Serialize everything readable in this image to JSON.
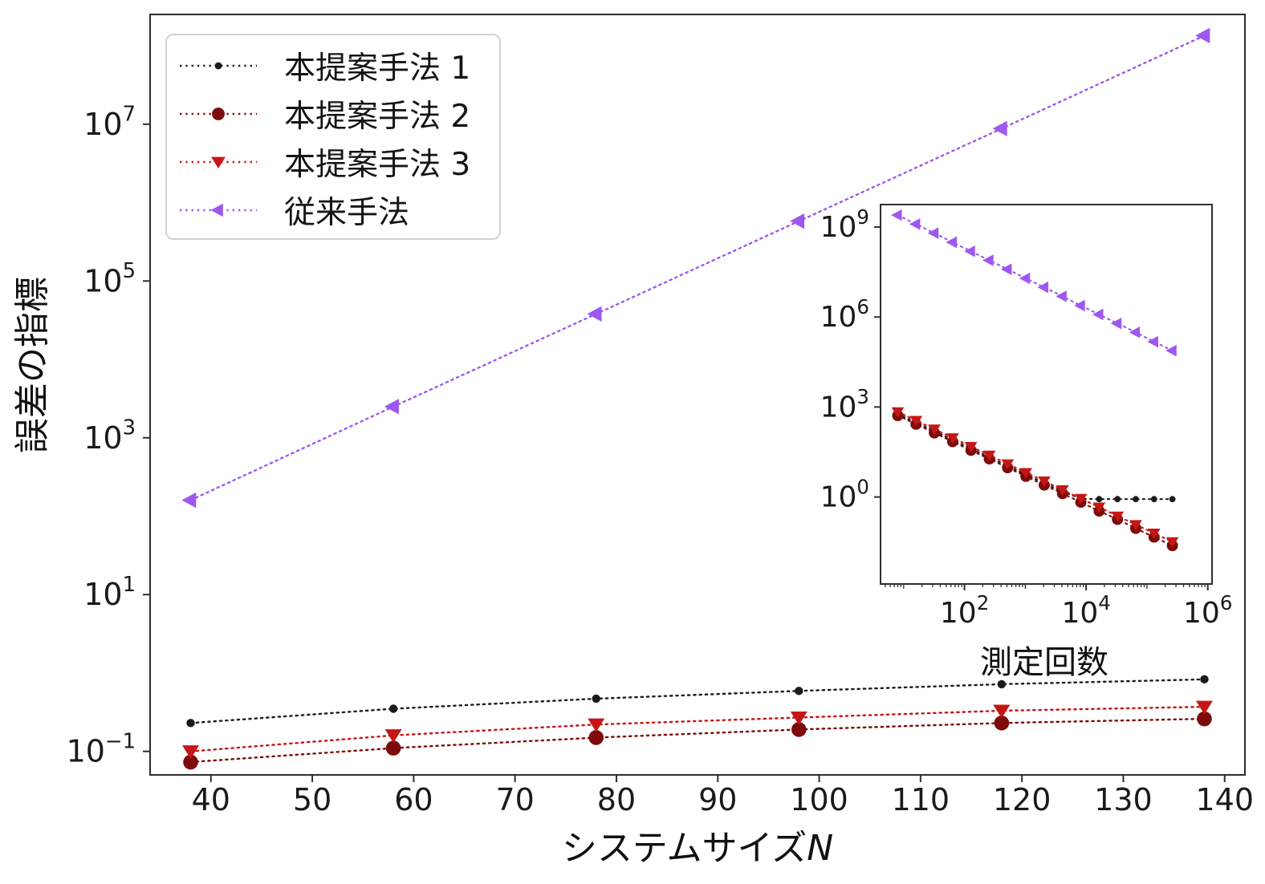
{
  "figure": {
    "background": "#ffffff",
    "axis_color": "#2e2e2e"
  },
  "chart_data": [
    {
      "id": "main",
      "type": "line",
      "x_scale": "linear",
      "y_scale": "log",
      "title": "",
      "xlabel": "システムサイズN",
      "xlabel_text": "システムサイズ",
      "xlabel_var": "N",
      "ylabel": "誤差の指標",
      "xlim": [
        34,
        142
      ],
      "ylim_log10": [
        -1.3,
        8.4
      ],
      "x_ticks": [
        40,
        50,
        60,
        70,
        80,
        90,
        100,
        110,
        120,
        130,
        140
      ],
      "y_tick_exponents": [
        -1,
        1,
        3,
        5,
        7
      ],
      "grid": false,
      "legend_position": "upper left",
      "series": [
        {
          "name": "本提案手法 1",
          "marker": "dot",
          "line": "dotted",
          "color": "#1c1c1c",
          "x": [
            38,
            58,
            78,
            98,
            118,
            138
          ],
          "y": [
            0.23,
            0.35,
            0.47,
            0.59,
            0.72,
            0.83
          ]
        },
        {
          "name": "本提案手法 2",
          "marker": "circle",
          "line": "dotted",
          "color": "#7d0b0b",
          "x": [
            38,
            58,
            78,
            98,
            118,
            138
          ],
          "y": [
            0.073,
            0.11,
            0.15,
            0.19,
            0.23,
            0.26
          ]
        },
        {
          "name": "本提案手法 3",
          "marker": "triangle-down",
          "line": "dotted",
          "color": "#c51616",
          "x": [
            38,
            58,
            78,
            98,
            118,
            138
          ],
          "y": [
            0.1,
            0.16,
            0.22,
            0.27,
            0.33,
            0.37
          ]
        },
        {
          "name": "従来手法",
          "marker": "triangle-left",
          "line": "dotted",
          "color": "#9e58f0",
          "x": [
            38,
            58,
            78,
            98,
            118,
            138
          ],
          "y": [
            160,
            2500,
            38000,
            580000,
            8800000,
            135000000
          ]
        }
      ]
    },
    {
      "id": "inset",
      "type": "line",
      "x_scale": "log",
      "y_scale": "log",
      "title": "",
      "xlabel": "測定回数",
      "ylabel": "",
      "xlim_log10": [
        0.62,
        6.07
      ],
      "ylim_log10": [
        -2.9,
        9.75
      ],
      "x_tick_exponents": [
        2,
        4,
        6
      ],
      "y_tick_exponents": [
        0,
        3,
        6,
        9
      ],
      "grid": false,
      "series": [
        {
          "name": "本提案手法 1",
          "marker": "dot",
          "line": "dotted",
          "color": "#1c1c1c",
          "x": [
            8,
            16,
            32,
            64,
            128,
            256,
            512,
            1024,
            2048,
            4096,
            8192,
            16384,
            32768,
            65536,
            131072,
            262144
          ],
          "y": [
            588,
            303,
            156,
            80,
            41,
            21,
            10.8,
            5.6,
            2.9,
            1.5,
            0.88,
            0.85,
            0.85,
            0.85,
            0.85,
            0.85
          ]
        },
        {
          "name": "本提案手法 2",
          "marker": "circle",
          "line": "dotted",
          "color": "#7d0b0b",
          "x": [
            8,
            16,
            32,
            64,
            128,
            256,
            512,
            1024,
            2048,
            4096,
            8192,
            16384,
            32768,
            65536,
            131072,
            262144
          ],
          "y": [
            519,
            267,
            137,
            70,
            36,
            18.6,
            9.5,
            4.9,
            2.5,
            1.3,
            0.67,
            0.34,
            0.18,
            0.09,
            0.046,
            0.024
          ]
        },
        {
          "name": "本提案手法 3",
          "marker": "triangle-down",
          "line": "dotted",
          "color": "#c51616",
          "x": [
            8,
            16,
            32,
            64,
            128,
            256,
            512,
            1024,
            2048,
            4096,
            8192,
            16384,
            32768,
            65536,
            131072,
            262144
          ],
          "y": [
            692,
            356,
            183,
            94,
            48,
            24.8,
            12.7,
            6.5,
            3.4,
            1.73,
            0.89,
            0.46,
            0.23,
            0.12,
            0.062,
            0.032
          ]
        },
        {
          "name": "従来手法",
          "marker": "triangle-left",
          "line": "dotted",
          "color": "#9e58f0",
          "x": [
            8,
            16,
            32,
            64,
            128,
            256,
            512,
            1024,
            2048,
            4096,
            8192,
            16384,
            32768,
            65536,
            131072,
            262144
          ],
          "y": [
            2500000000.0,
            1250000000.0,
            625000000.0,
            310000000.0,
            156000000.0,
            78000000.0,
            39000000.0,
            19500000.0,
            9800000.0,
            4900000.0,
            2400000.0,
            1220000.0,
            610000.0,
            310000.0,
            150000.0,
            76000.0
          ]
        }
      ]
    }
  ]
}
